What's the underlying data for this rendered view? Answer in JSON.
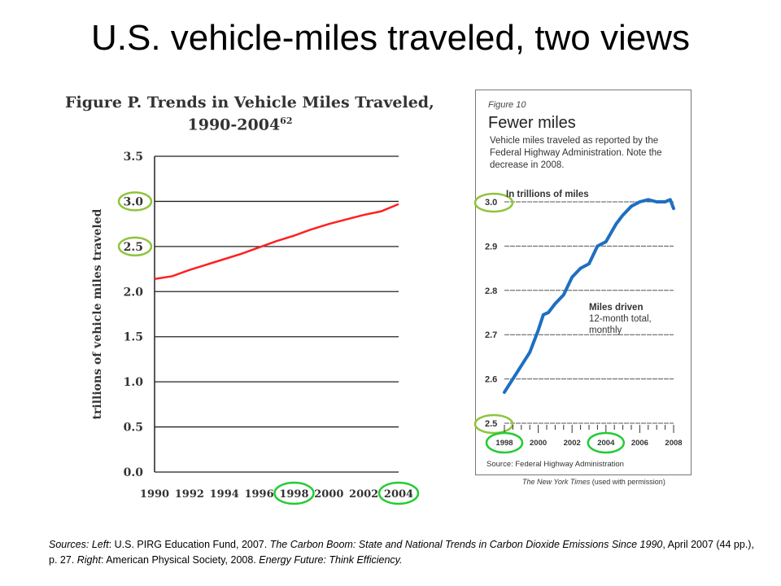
{
  "slide": {
    "title": "U.S. vehicle-miles traveled, two views"
  },
  "left_chart_title": {
    "line1": "Figure P. Trends in Vehicle Miles Traveled,",
    "line2_main": "1990-2004",
    "line2_sup": "62"
  },
  "right_panel": {
    "fig_label": "Figure 10",
    "fig_title": "Fewer miles",
    "description": "Vehicle miles traveled as reported by the Federal Highway Administration. Note the decrease in 2008.",
    "units_label": "In trillions of miles",
    "series_name": "Miles driven",
    "series_desc": "12-month total, monthly",
    "source": "Source: Federal Highway Administration",
    "credit_italic": "The New York Times",
    "credit_rest": " (used with permission)"
  },
  "sources": {
    "prefix": "Sources: ",
    "left_label": "Left",
    "left_text_1": ": U.S. PIRG Education Fund, 2007. ",
    "left_title": "The Carbon Boom: State and National Trends in Carbon Dioxide Emissions Since 1990",
    "left_text_2": ", April 2007 (44 pp.), p. 27. ",
    "right_label": "Right",
    "right_text_1": ": American Physical Society, 2008. ",
    "right_title": "Energy Future: Think Efficiency."
  },
  "colors": {
    "left_line": "#ff2020",
    "right_line": "#1e6fc0",
    "highlight": "#8fc43c"
  },
  "chart_data": [
    {
      "type": "line",
      "ylabel": "trillions of vehicle miles traveled",
      "ylim": [
        0,
        3.5
      ],
      "xlim": [
        1990,
        2004
      ],
      "yticks": [
        "0.0",
        "0.5",
        "1.0",
        "1.5",
        "2.0",
        "2.5",
        "3.0",
        "3.5"
      ],
      "xticks": [
        "1990",
        "1992",
        "1994",
        "1996",
        "1998",
        "2000",
        "2002",
        "2004"
      ],
      "grid": true,
      "highlighted_ticks": [
        "3.0",
        "2.5",
        "1998",
        "2004"
      ],
      "x": [
        1990,
        1991,
        1992,
        1993,
        1994,
        1995,
        1996,
        1997,
        1998,
        1999,
        2000,
        2001,
        2002,
        2003,
        2004
      ],
      "values": [
        2.14,
        2.17,
        2.24,
        2.3,
        2.36,
        2.42,
        2.49,
        2.56,
        2.62,
        2.69,
        2.75,
        2.8,
        2.85,
        2.89,
        2.97
      ]
    },
    {
      "type": "line",
      "ylim": [
        2.5,
        3.0
      ],
      "xlim": [
        1998,
        2008
      ],
      "yticks": [
        "2.5",
        "2.6",
        "2.7",
        "2.8",
        "2.9",
        "3.0"
      ],
      "xticks": [
        "1998",
        "2000",
        "2002",
        "2004",
        "2006",
        "2008"
      ],
      "grid": true,
      "highlighted_ticks": [
        "3.0",
        "2.5",
        "1998",
        "2004"
      ],
      "x": [
        1998.0,
        1998.5,
        1999.0,
        1999.5,
        2000.0,
        2000.3,
        2000.6,
        2001.0,
        2001.5,
        2002.0,
        2002.5,
        2003.0,
        2003.5,
        2004.0,
        2004.3,
        2004.6,
        2005.0,
        2005.5,
        2006.0,
        2006.5,
        2007.0,
        2007.5,
        2007.8,
        2008.0
      ],
      "values": [
        2.57,
        2.6,
        2.63,
        2.66,
        2.71,
        2.745,
        2.75,
        2.77,
        2.79,
        2.83,
        2.85,
        2.86,
        2.9,
        2.91,
        2.93,
        2.95,
        2.97,
        2.99,
        3.0,
        3.005,
        3.0,
        3.0,
        3.005,
        2.985
      ]
    }
  ]
}
